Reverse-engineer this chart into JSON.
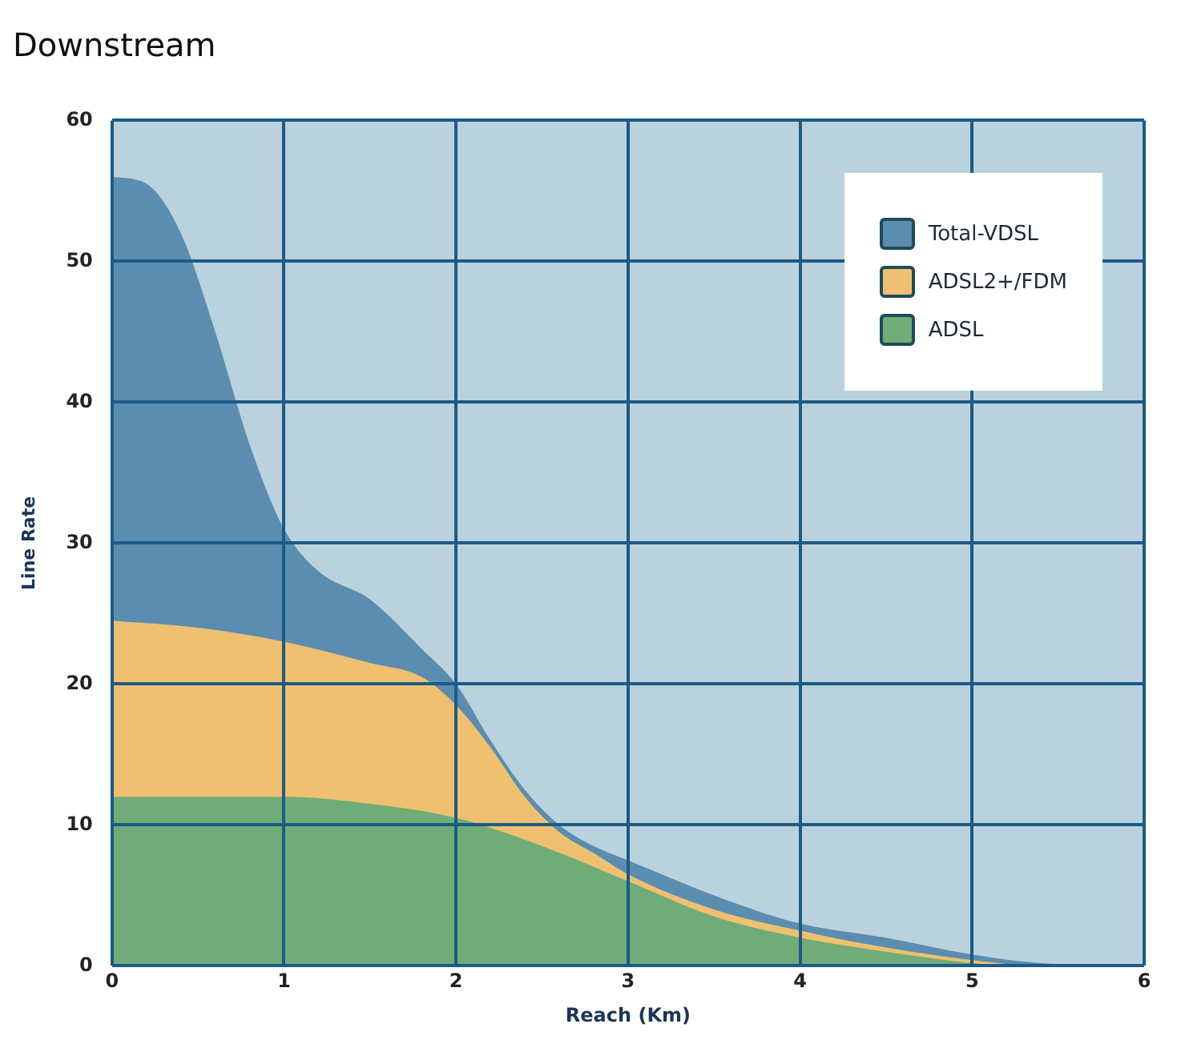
{
  "chart_data": {
    "type": "area",
    "title": "Downstream",
    "xlabel": "Reach (Km)",
    "ylabel": "Line Rate",
    "xlim": [
      0,
      6
    ],
    "xticks": [
      0,
      1,
      2,
      3,
      4,
      5,
      6
    ],
    "ylim": [
      0,
      60
    ],
    "yticks": [
      0,
      10,
      20,
      30,
      40,
      50,
      60
    ],
    "grid": true,
    "legend": "top right",
    "series": [
      {
        "name": "Total-VDSL",
        "color": "#5b8db0",
        "x": [
          0,
          0.2,
          0.4,
          0.6,
          0.8,
          1.0,
          1.2,
          1.5,
          1.8,
          2.0,
          2.2,
          2.4,
          2.6,
          2.8,
          3.0,
          3.5,
          4.0,
          4.5,
          5.0,
          5.3,
          5.6
        ],
        "values": [
          56,
          55.5,
          52,
          45,
          37,
          31,
          28,
          26,
          22.5,
          20,
          16,
          12.5,
          10,
          8.5,
          7.5,
          5,
          3,
          2,
          0.8,
          0.3,
          0
        ]
      },
      {
        "name": "ADSL2+/FDM",
        "color": "#eec070",
        "x": [
          0,
          0.5,
          1.0,
          1.5,
          1.8,
          2.0,
          2.2,
          2.4,
          2.6,
          2.8,
          3.0,
          3.5,
          4.0,
          4.5,
          5.0,
          5.3
        ],
        "values": [
          24.5,
          24,
          23,
          21.5,
          20.5,
          18.5,
          15.5,
          12,
          9.5,
          8,
          6.5,
          4,
          2.5,
          1.3,
          0.4,
          0
        ]
      },
      {
        "name": "ADSL",
        "color": "#6fac78",
        "x": [
          0,
          1.0,
          1.5,
          2.0,
          2.5,
          3.0,
          3.5,
          4.0,
          4.5,
          5.0,
          5.3
        ],
        "values": [
          12,
          12,
          11.5,
          10.5,
          8.5,
          6,
          3.5,
          2,
          1,
          0.2,
          0
        ]
      }
    ]
  }
}
